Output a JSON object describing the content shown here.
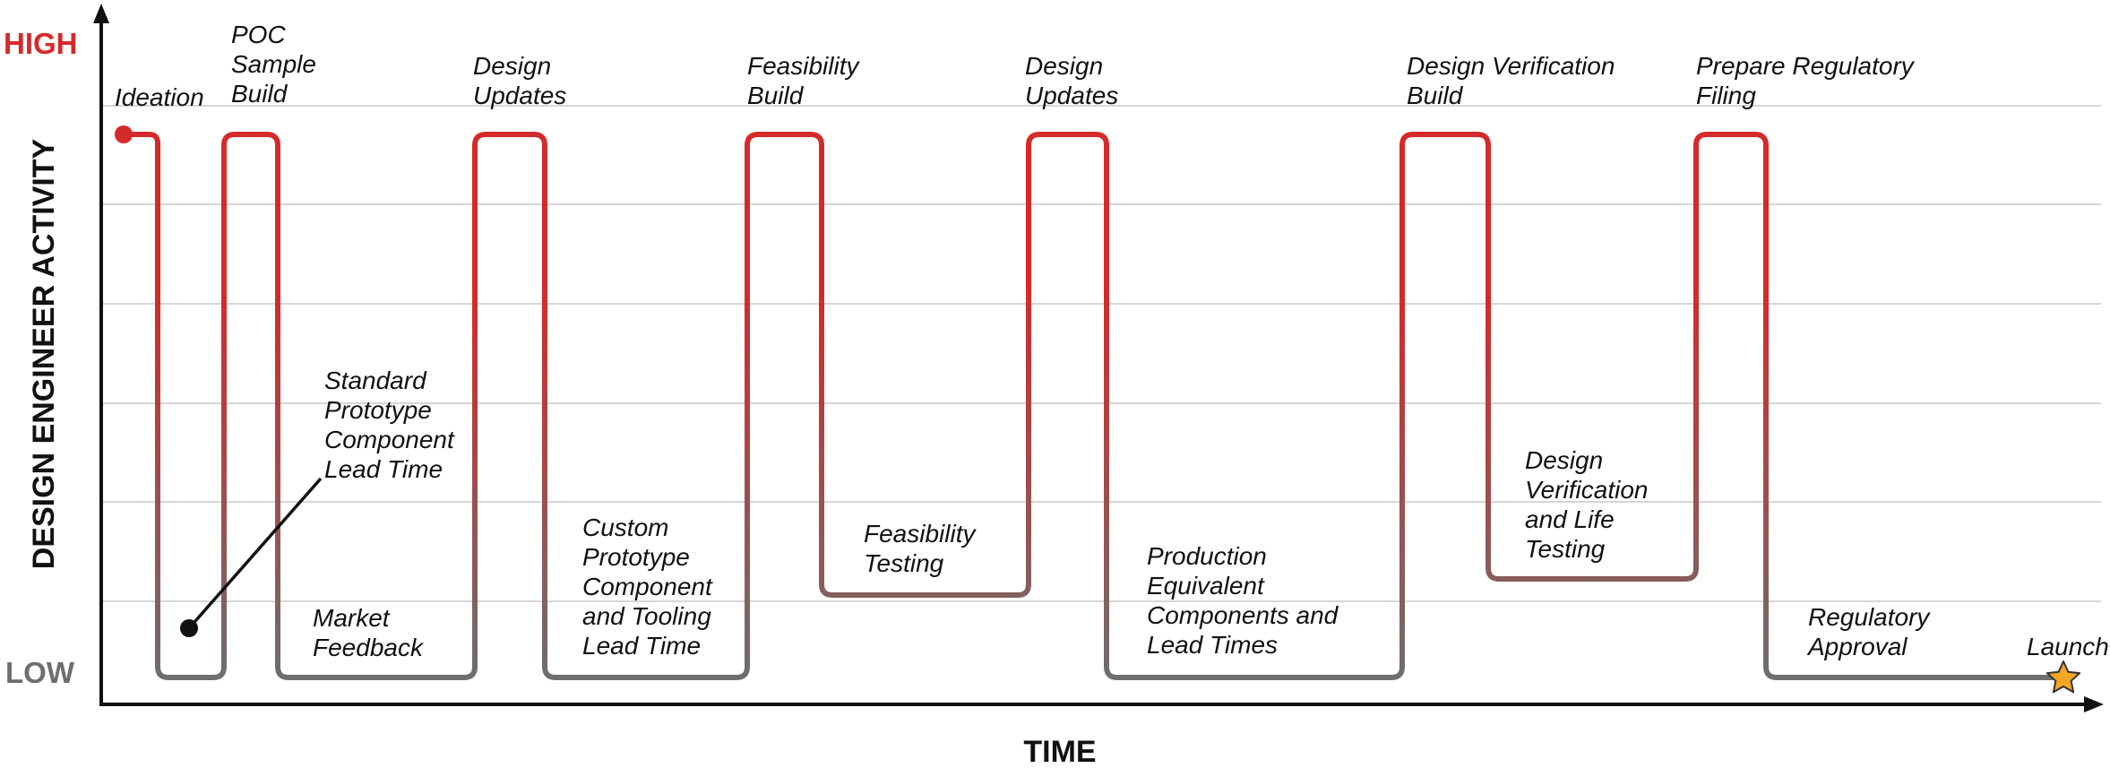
{
  "axes": {
    "y_label": "DESIGN ENGINEER ACTIVITY",
    "x_label": "TIME",
    "high_label": "HIGH",
    "low_label": "LOW"
  },
  "colors": {
    "high": "#d42a2a",
    "low": "#6e6e6e",
    "axis": "#111111",
    "grid": "#c8c8c8",
    "star_fill": "#f5a623",
    "star_stroke": "#333333"
  },
  "phases": [
    {
      "lines": [
        "Ideation"
      ]
    },
    {
      "lines": [
        "POC",
        "Sample",
        "Build"
      ]
    },
    {
      "lines": [
        "Standard",
        "Prototype",
        "Component",
        "Lead Time"
      ]
    },
    {
      "lines": [
        "Market",
        "Feedback"
      ]
    },
    {
      "lines": [
        "Design",
        "Updates"
      ]
    },
    {
      "lines": [
        "Custom",
        "Prototype",
        "Component",
        "and Tooling",
        "Lead Time"
      ]
    },
    {
      "lines": [
        "Feasibility",
        "Build"
      ]
    },
    {
      "lines": [
        "Feasibility",
        "Testing"
      ]
    },
    {
      "lines": [
        "Design",
        "Updates"
      ]
    },
    {
      "lines": [
        "Production",
        "Equivalent",
        "Components and",
        "Lead Times"
      ]
    },
    {
      "lines": [
        "Design Verification",
        "Build"
      ]
    },
    {
      "lines": [
        "Design",
        "Verification",
        "and Life",
        "Testing"
      ]
    },
    {
      "lines": [
        "Prepare Regulatory",
        "Filing"
      ]
    },
    {
      "lines": [
        "Regulatory",
        "Approval"
      ]
    },
    {
      "lines": [
        "Launch"
      ]
    }
  ]
}
